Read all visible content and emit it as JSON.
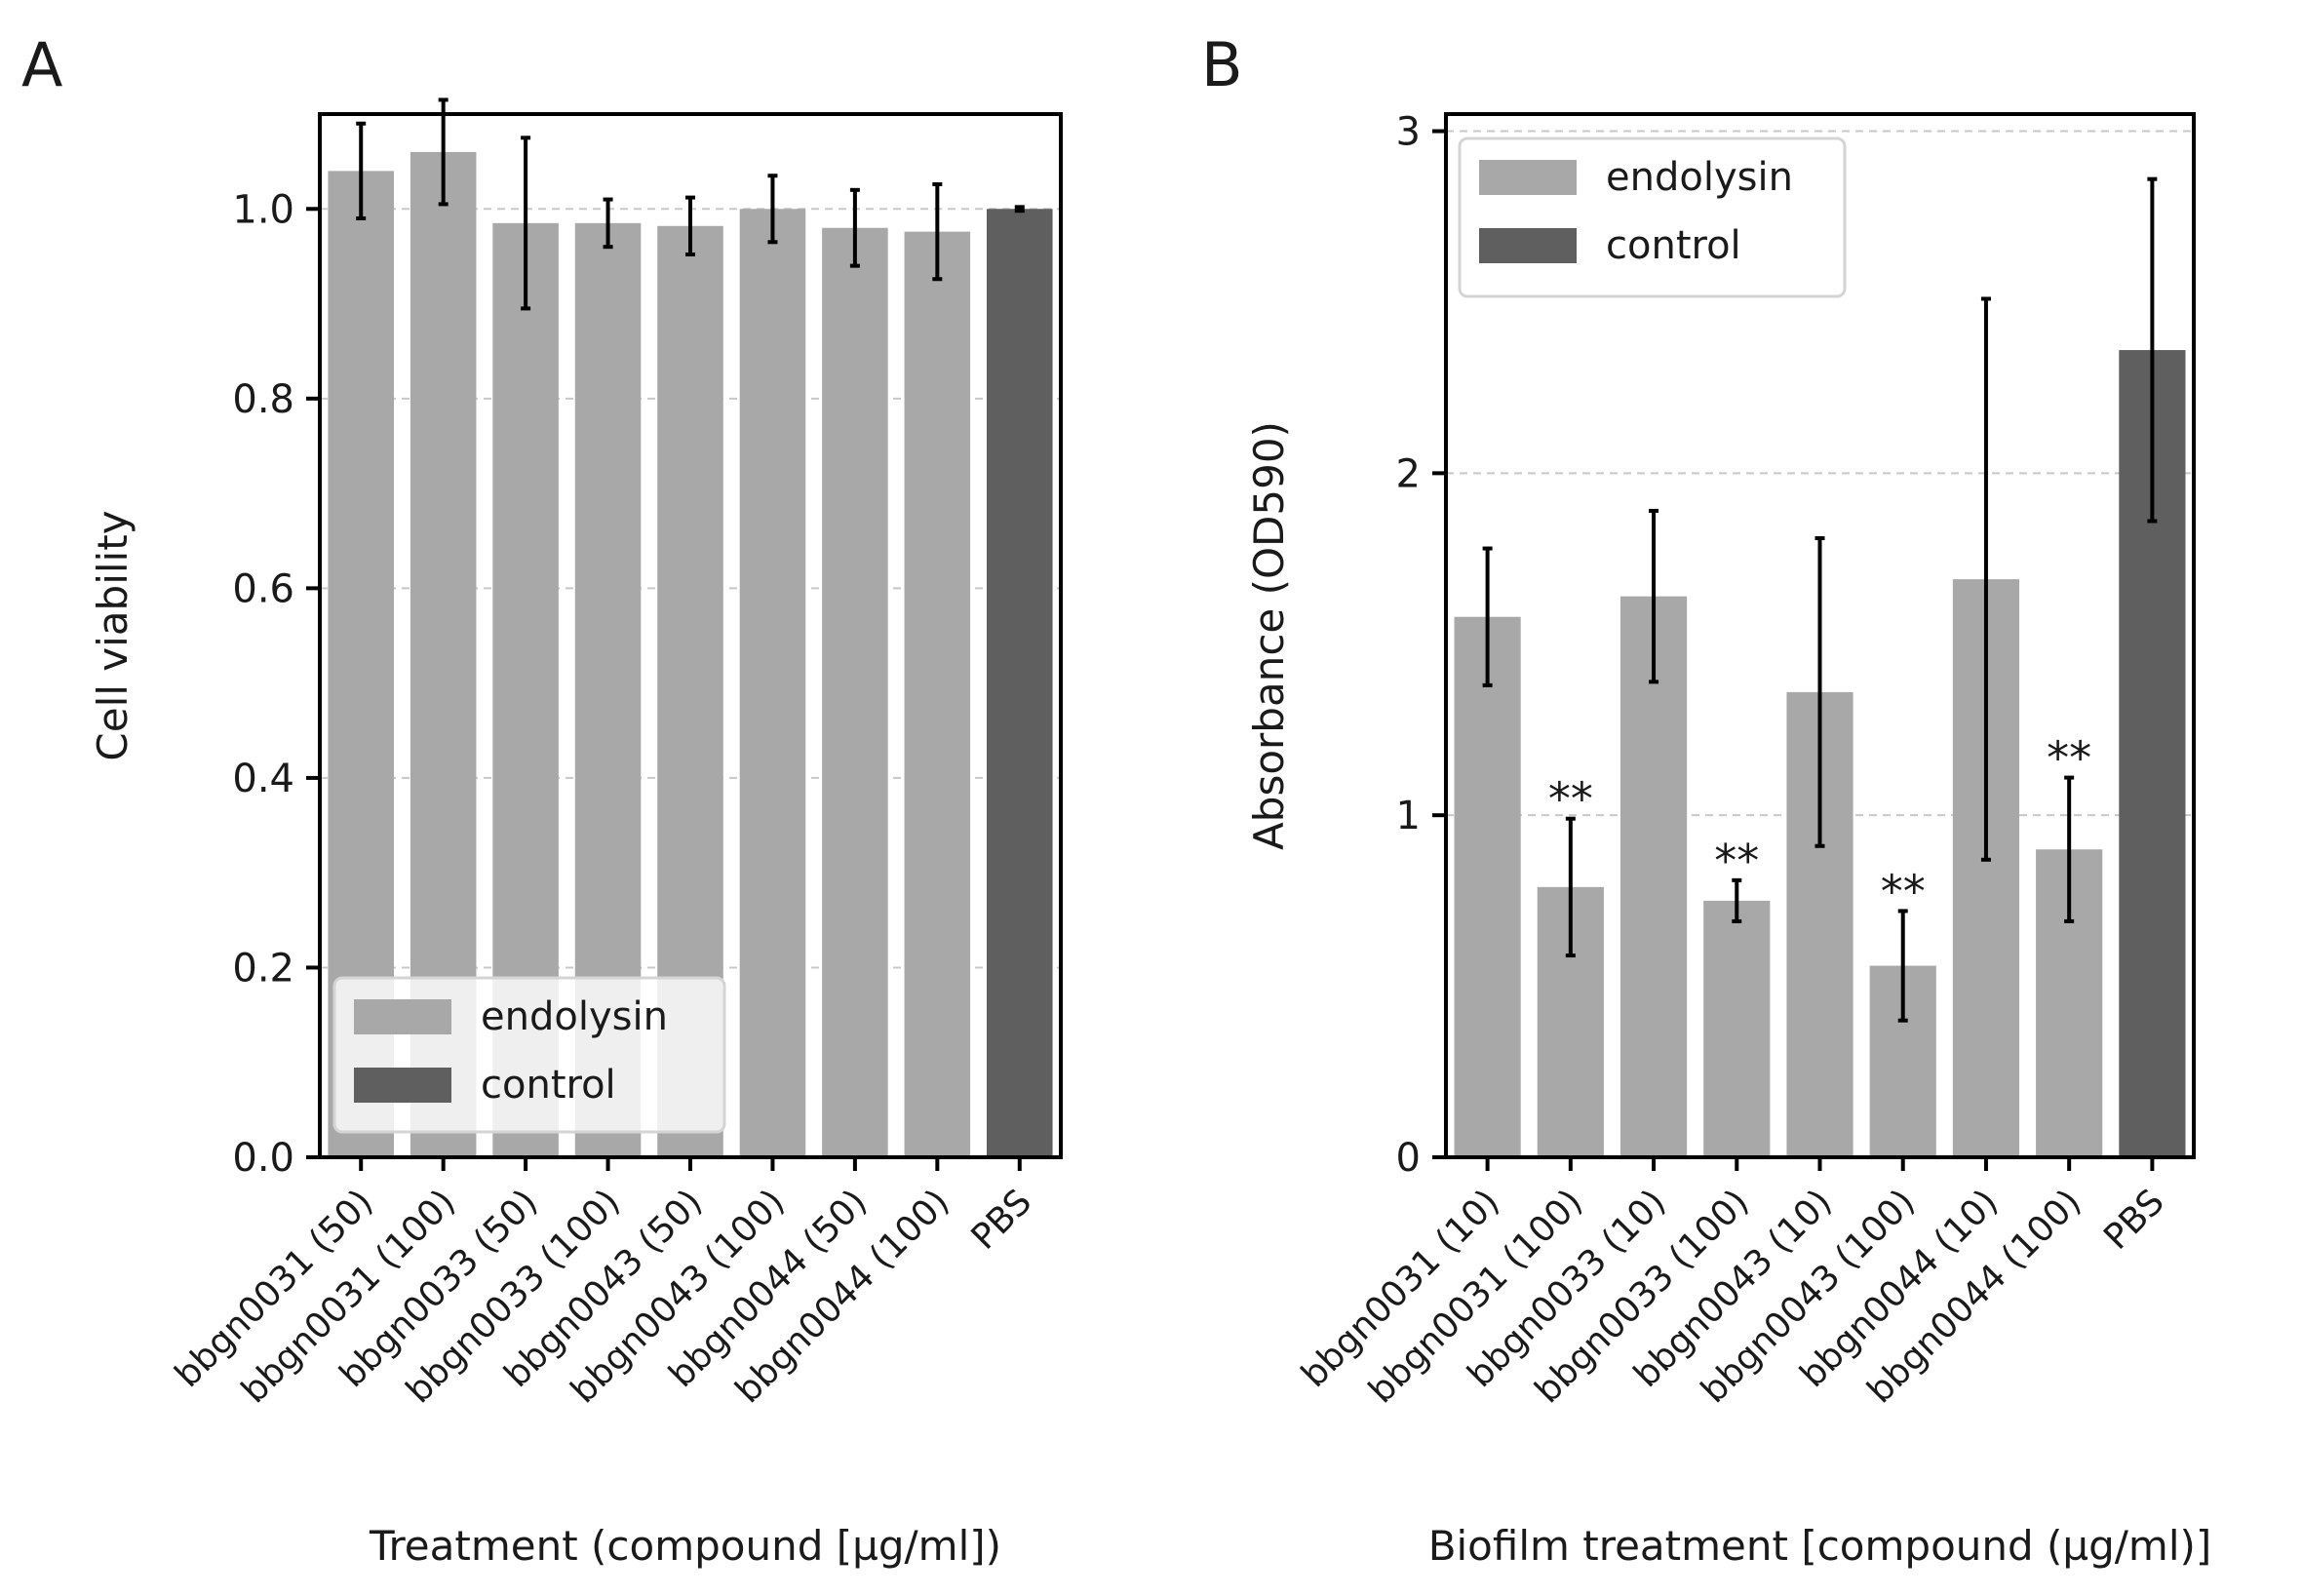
{
  "chart_data": [
    {
      "panel": "A",
      "type": "bar",
      "xlabel": "Treatment (compound [µg/ml])",
      "ylabel": "Cell viability",
      "ylim": [
        0,
        1.1
      ],
      "yticks": [
        0.0,
        0.2,
        0.4,
        0.6,
        0.8,
        1.0
      ],
      "ytick_labels": [
        "0.0",
        "0.2",
        "0.4",
        "0.6",
        "0.8",
        "1.0"
      ],
      "grid": "y dashed",
      "legend_position": "lower-left",
      "legend": [
        {
          "label": "endolysin",
          "color": "#a8a8a8"
        },
        {
          "label": "control",
          "color": "#5f5f5f"
        }
      ],
      "categories": [
        "bbgn0031 (50)",
        "bbgn0031 (100)",
        "bbgn0033 (50)",
        "bbgn0033 (100)",
        "bbgn0043 (50)",
        "bbgn0043 (100)",
        "bbgn0044 (50)",
        "bbgn0044 (100)",
        "PBS"
      ],
      "values": [
        1.04,
        1.06,
        0.985,
        0.985,
        0.982,
        1.0,
        0.98,
        0.976,
        1.0
      ],
      "errors": [
        0.05,
        0.055,
        0.09,
        0.025,
        0.03,
        0.035,
        0.04,
        0.05,
        0.002
      ],
      "groups": [
        "endolysin",
        "endolysin",
        "endolysin",
        "endolysin",
        "endolysin",
        "endolysin",
        "endolysin",
        "endolysin",
        "control"
      ],
      "annotations": [
        "",
        "",
        "",
        "",
        "",
        "",
        "",
        "",
        ""
      ]
    },
    {
      "panel": "B",
      "type": "bar",
      "xlabel": "Biofilm treatment [compound (µg/ml)]",
      "ylabel": "Absorbance (OD590)",
      "ylim": [
        0,
        3.05
      ],
      "yticks": [
        0,
        1,
        2,
        3
      ],
      "ytick_labels": [
        "0",
        "1",
        "2",
        "3"
      ],
      "grid": "y dashed",
      "legend_position": "top-left",
      "legend": [
        {
          "label": "endolysin",
          "color": "#a8a8a8"
        },
        {
          "label": "control",
          "color": "#5f5f5f"
        }
      ],
      "categories": [
        "bbgn0031 (10)",
        "bbgn0031 (100)",
        "bbgn0033 (10)",
        "bbgn0033 (100)",
        "bbgn0043 (10)",
        "bbgn0043 (100)",
        "bbgn0044 (10)",
        "bbgn0044 (100)",
        "PBS"
      ],
      "values": [
        1.58,
        0.79,
        1.64,
        0.75,
        1.36,
        0.56,
        1.69,
        0.9,
        2.36
      ],
      "errors": [
        0.2,
        0.2,
        0.25,
        0.06,
        0.45,
        0.16,
        0.82,
        0.21,
        0.5
      ],
      "groups": [
        "endolysin",
        "endolysin",
        "endolysin",
        "endolysin",
        "endolysin",
        "endolysin",
        "endolysin",
        "endolysin",
        "control"
      ],
      "annotations": [
        "",
        "**",
        "",
        "**",
        "",
        "**",
        "",
        "**",
        ""
      ]
    }
  ]
}
